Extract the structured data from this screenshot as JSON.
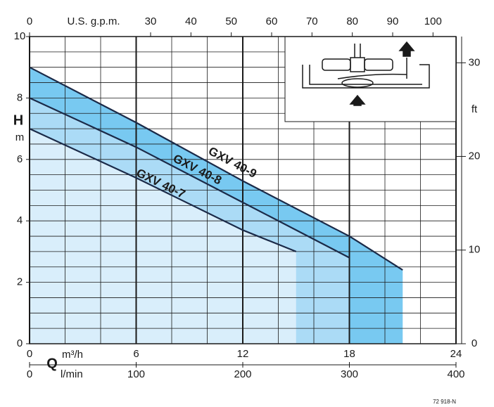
{
  "chart_data": {
    "type": "line",
    "x_unit": "m³/h",
    "x2_unit": "l/min",
    "x3_unit": "U.S. g.p.m.",
    "x_symbol": "Q",
    "y_symbol": "H",
    "y_unit": "m",
    "y2_unit": "ft",
    "code": "72 918-N",
    "xlim": [
      0,
      24
    ],
    "xticks": [
      0,
      6,
      12,
      18,
      24
    ],
    "x2lim": [
      0,
      400
    ],
    "x2ticks": [
      0,
      100,
      200,
      300,
      400
    ],
    "x3lim": [
      0,
      105.7
    ],
    "x3ticks": [
      0,
      30,
      40,
      50,
      60,
      70,
      80,
      90,
      100
    ],
    "ylim": [
      0,
      10
    ],
    "yticks": [
      0,
      2,
      4,
      6,
      8,
      10
    ],
    "y2lim": [
      0,
      32.8
    ],
    "y2ticks": [
      0,
      10,
      20,
      30
    ],
    "series": [
      {
        "name": "GXV 40-9",
        "color": "#78c9f1",
        "x": [
          0,
          6,
          12,
          18,
          21
        ],
        "values": [
          9.0,
          7.2,
          5.3,
          3.5,
          2.4
        ]
      },
      {
        "name": "GXV 40-8",
        "color": "#abdbf6",
        "x": [
          0,
          6,
          12,
          18
        ],
        "values": [
          8.0,
          6.4,
          4.6,
          2.8
        ]
      },
      {
        "name": "GXV 40-7",
        "color": "#d9eefb",
        "x": [
          0,
          6,
          12,
          15
        ],
        "values": [
          7.0,
          5.4,
          3.7,
          3.0
        ]
      }
    ]
  }
}
